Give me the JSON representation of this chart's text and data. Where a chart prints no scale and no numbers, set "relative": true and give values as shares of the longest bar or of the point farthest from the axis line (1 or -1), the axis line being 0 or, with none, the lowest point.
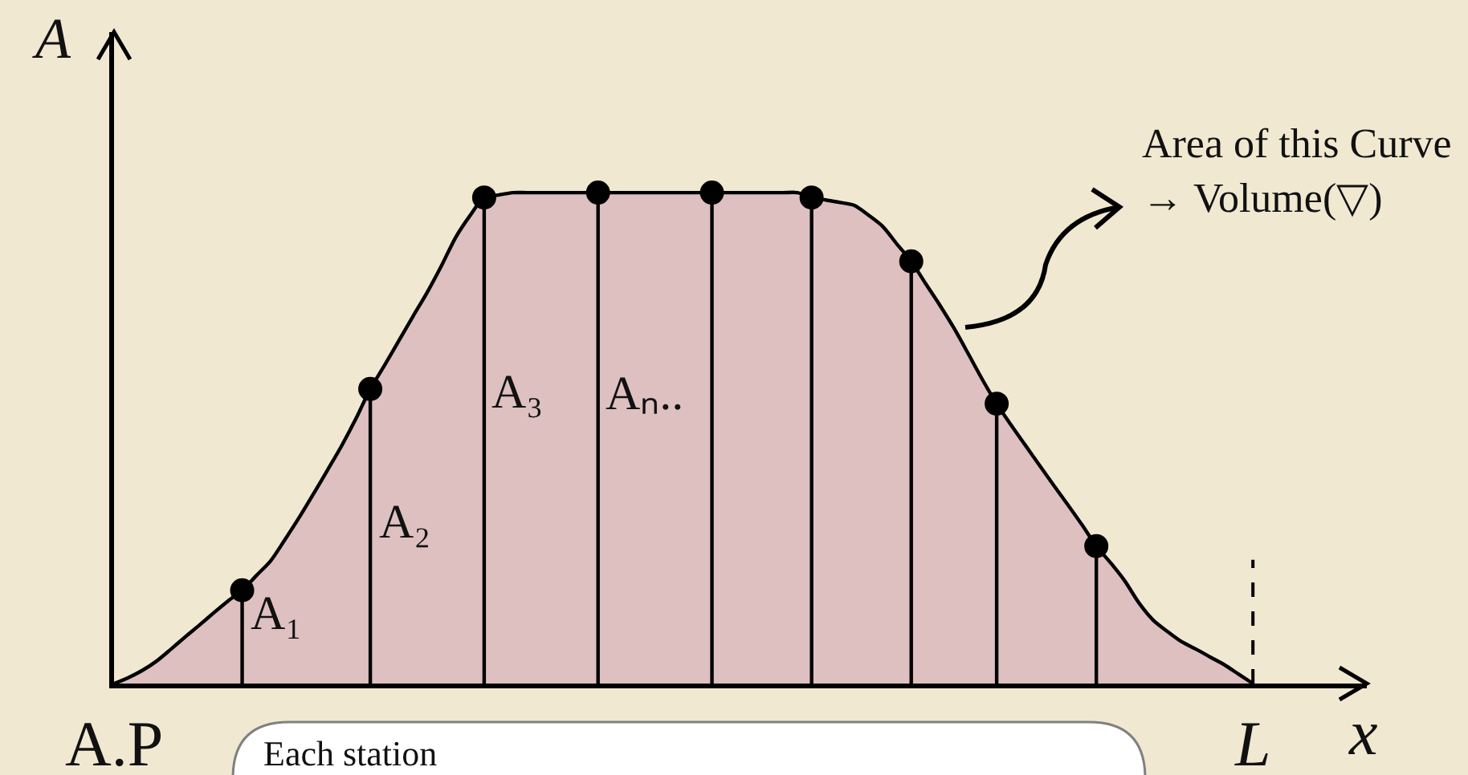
{
  "chart_data": {
    "type": "area",
    "relative": true,
    "xlabel": "x",
    "ylabel": "A",
    "categories": [
      "A.P",
      null,
      null,
      null,
      null,
      null,
      null,
      null,
      null,
      null,
      null,
      null,
      null,
      null,
      null,
      null,
      null,
      null,
      null,
      null,
      null,
      null,
      null,
      null,
      null,
      null,
      null,
      null,
      null,
      null,
      null,
      null,
      null,
      null,
      null,
      null,
      null,
      null,
      null,
      null,
      null,
      null,
      null,
      null,
      null,
      null,
      null,
      null,
      null,
      null,
      null,
      null,
      null,
      null,
      null,
      null,
      null,
      null,
      null,
      null,
      null,
      null,
      null,
      null,
      null,
      null,
      null,
      null,
      null,
      null,
      null,
      null,
      null,
      null,
      null,
      null,
      null,
      null,
      null,
      null,
      "L"
    ],
    "series": [
      {
        "color": "#dec0c1",
        "values": [
          0,
          0.012,
          0.027,
          0.046,
          0.07,
          0.095,
          0.119,
          0.144,
          0.168,
          0.19,
          0.22,
          0.25,
          0.293,
          0.338,
          0.386,
          0.435,
          0.485,
          0.54,
          0.6,
          0.648,
          0.698,
          0.748,
          0.797,
          0.851,
          0.909,
          0.953,
          0.99,
          0.995,
          1.0,
          1.0,
          1.0,
          1.0,
          1.0,
          1.0,
          1.0,
          1.0,
          1.0,
          1.0,
          1.0,
          1.0,
          1.0,
          1.0,
          1.0,
          1.0,
          1.0,
          1.0,
          1.0,
          1.0,
          1.0,
          0.99,
          0.985,
          0.98,
          0.974,
          0.954,
          0.931,
          0.895,
          0.86,
          0.815,
          0.771,
          0.724,
          0.672,
          0.619,
          0.57,
          0.527,
          0.486,
          0.445,
          0.404,
          0.364,
          0.323,
          0.28,
          0.246,
          0.209,
          0.164,
          0.129,
          0.106,
          0.085,
          0.07,
          0.054,
          0.038,
          0.019,
          0
        ]
      },
      {
        "type": "lollipop",
        "color": "#000000",
        "marker": "circle",
        "values": [
          null,
          null,
          null,
          null,
          null,
          null,
          null,
          null,
          null,
          0.19,
          null,
          null,
          null,
          null,
          null,
          null,
          null,
          null,
          0.6,
          null,
          null,
          null,
          null,
          null,
          null,
          null,
          0.99,
          null,
          null,
          null,
          null,
          null,
          null,
          null,
          1.0,
          null,
          null,
          null,
          null,
          null,
          null,
          null,
          1.0,
          null,
          null,
          null,
          null,
          null,
          null,
          0.99,
          null,
          null,
          null,
          null,
          null,
          null,
          0.86,
          null,
          null,
          null,
          null,
          null,
          0.57,
          null,
          null,
          null,
          null,
          null,
          null,
          0.28,
          null,
          null,
          null,
          null,
          null,
          null,
          null,
          null,
          null,
          null,
          null
        ]
      }
    ],
    "ref_lines": [
      {
        "axis": "x",
        "value": "L",
        "line_style": "dashed",
        "color": "#000000"
      }
    ],
    "annotations": [
      "A₁",
      "A₂",
      "A₃",
      "Aₙ..",
      "Area of this Curve\n→ Volume(▽)",
      "Each station"
    ]
  }
}
